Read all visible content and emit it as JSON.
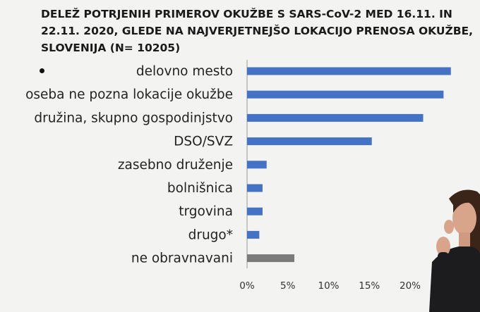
{
  "title": {
    "line1": "DELEŽ POTRJENIH PRIMEROV OKUŽBE S SARS-CoV-2 MED 16.11. IN",
    "line2": "22.11. 2020, GLEDE NA NAJVERJETNEJŠO LOKACIJO PRENOSA OKUŽBE,",
    "line3": "SLOVENIJA  (N= 10205)"
  },
  "colors": {
    "bar_primary": "#4472c4",
    "bar_other": "#7a7a7a",
    "axis": "#999999",
    "background": "#f3f3f1"
  },
  "chart_data": {
    "type": "bar",
    "orientation": "horizontal",
    "title": "DELEŽ POTRJENIH PRIMEROV OKUŽBE S SARS-CoV-2 MED 16.11. IN 22.11. 2020, GLEDE NA NAJVERJETNEJŠO LOKACIJO PRENOSA OKUŽBE, SLOVENIJA  (N= 10205)",
    "categories": [
      "delovno mesto",
      "oseba ne pozna lokacije okužbe",
      "družina, skupno gospodinjstvo",
      "DSO/SVZ",
      "zasebno druženje",
      "bolnišnica",
      "trgovina",
      "drugo*",
      "ne obravnavani"
    ],
    "values": [
      25.0,
      24.1,
      21.6,
      15.3,
      2.4,
      1.9,
      1.9,
      1.5,
      5.8
    ],
    "bar_colors": [
      "#4472c4",
      "#4472c4",
      "#4472c4",
      "#4472c4",
      "#4472c4",
      "#4472c4",
      "#4472c4",
      "#4472c4",
      "#7a7a7a"
    ],
    "x_ticks": [
      "0%",
      "5%",
      "10%",
      "15%",
      "20%"
    ],
    "x_tick_values": [
      0,
      5,
      10,
      15,
      20
    ],
    "xlim": [
      0,
      25
    ],
    "grid": false,
    "xlabel": "",
    "ylabel": ""
  }
}
